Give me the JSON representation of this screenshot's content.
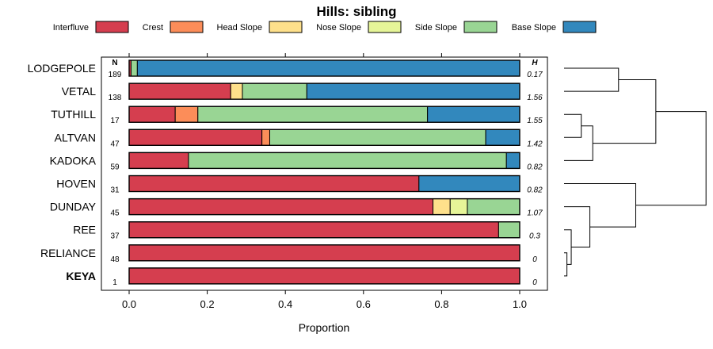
{
  "chart_data": {
    "type": "bar",
    "orientation": "horizontal-stacked",
    "title": "Hills: sibling",
    "xlabel": "Proportion",
    "xlim": [
      0,
      1
    ],
    "xticks": [
      "0.0",
      "0.2",
      "0.4",
      "0.6",
      "0.8",
      "1.0"
    ],
    "n_header": "N",
    "h_header": "H",
    "series": [
      {
        "name": "Interfluve",
        "color": "#D53E4F"
      },
      {
        "name": "Crest",
        "color": "#FC8D59"
      },
      {
        "name": "Head Slope",
        "color": "#FEE08B"
      },
      {
        "name": "Nose Slope",
        "color": "#E6F598"
      },
      {
        "name": "Side Slope",
        "color": "#99D594"
      },
      {
        "name": "Base Slope",
        "color": "#3288BD"
      }
    ],
    "rows": [
      {
        "label": "LODGEPOLE",
        "n": "189",
        "h": "0.17",
        "bold": false,
        "values": [
          0.005,
          0,
          0,
          0,
          0.016,
          0.979
        ]
      },
      {
        "label": "VETAL",
        "n": "138",
        "h": "1.56",
        "bold": false,
        "values": [
          0.26,
          0,
          0.03,
          0,
          0.165,
          0.545
        ]
      },
      {
        "label": "TUTHILL",
        "n": "17",
        "h": "1.55",
        "bold": false,
        "values": [
          0.118,
          0.058,
          0,
          0,
          0.588,
          0.236
        ]
      },
      {
        "label": "ALTVAN",
        "n": "47",
        "h": "1.42",
        "bold": false,
        "values": [
          0.34,
          0.02,
          0,
          0,
          0.553,
          0.087
        ]
      },
      {
        "label": "KADOKA",
        "n": "59",
        "h": "0.82",
        "bold": false,
        "values": [
          0.152,
          0,
          0,
          0,
          0.814,
          0.034
        ]
      },
      {
        "label": "HOVEN",
        "n": "31",
        "h": "0.82",
        "bold": false,
        "values": [
          0.742,
          0,
          0,
          0,
          0,
          0.258
        ]
      },
      {
        "label": "DUNDAY",
        "n": "45",
        "h": "1.07",
        "bold": false,
        "values": [
          0.778,
          0,
          0.044,
          0.044,
          0.134,
          0
        ]
      },
      {
        "label": "REE",
        "n": "37",
        "h": "0.3",
        "bold": false,
        "values": [
          0.946,
          0,
          0,
          0,
          0.054,
          0
        ]
      },
      {
        "label": "RELIANCE",
        "n": "48",
        "h": "0",
        "bold": false,
        "values": [
          1,
          0,
          0,
          0,
          0,
          0
        ]
      },
      {
        "label": "KEYA",
        "n": "1",
        "h": "0",
        "bold": true,
        "values": [
          1,
          0,
          0,
          0,
          0,
          0
        ]
      }
    ],
    "dendrogram": {
      "description": "hierarchical clustering of rows",
      "merges": [
        [
          "LODGEPOLE",
          "VETAL"
        ],
        [
          "TUTHILL",
          "ALTVAN"
        ],
        [
          "KADOKA",
          [
            "TUTHILL",
            "ALTVAN"
          ]
        ],
        [
          [
            "LODGEPOLE",
            "VETAL"
          ],
          [
            "KADOKA",
            [
              "TUTHILL",
              "ALTVAN"
            ]
          ]
        ],
        [
          "RELIANCE",
          "KEYA"
        ],
        [
          "REE",
          [
            "RELIANCE",
            "KEYA"
          ]
        ],
        [
          "DUNDAY",
          [
            "REE",
            [
              "RELIANCE",
              "KEYA"
            ]
          ]
        ],
        [
          "HOVEN",
          [
            "DUNDAY",
            [
              "REE",
              [
                "RELIANCE",
                "KEYA"
              ]
            ]
          ]
        ],
        [
          "top-cluster",
          "bottom-cluster"
        ]
      ],
      "heights": [
        0.38,
        0.12,
        0.2,
        0.64,
        0.02,
        0.05,
        0.18,
        0.5,
        0.99
      ]
    }
  }
}
